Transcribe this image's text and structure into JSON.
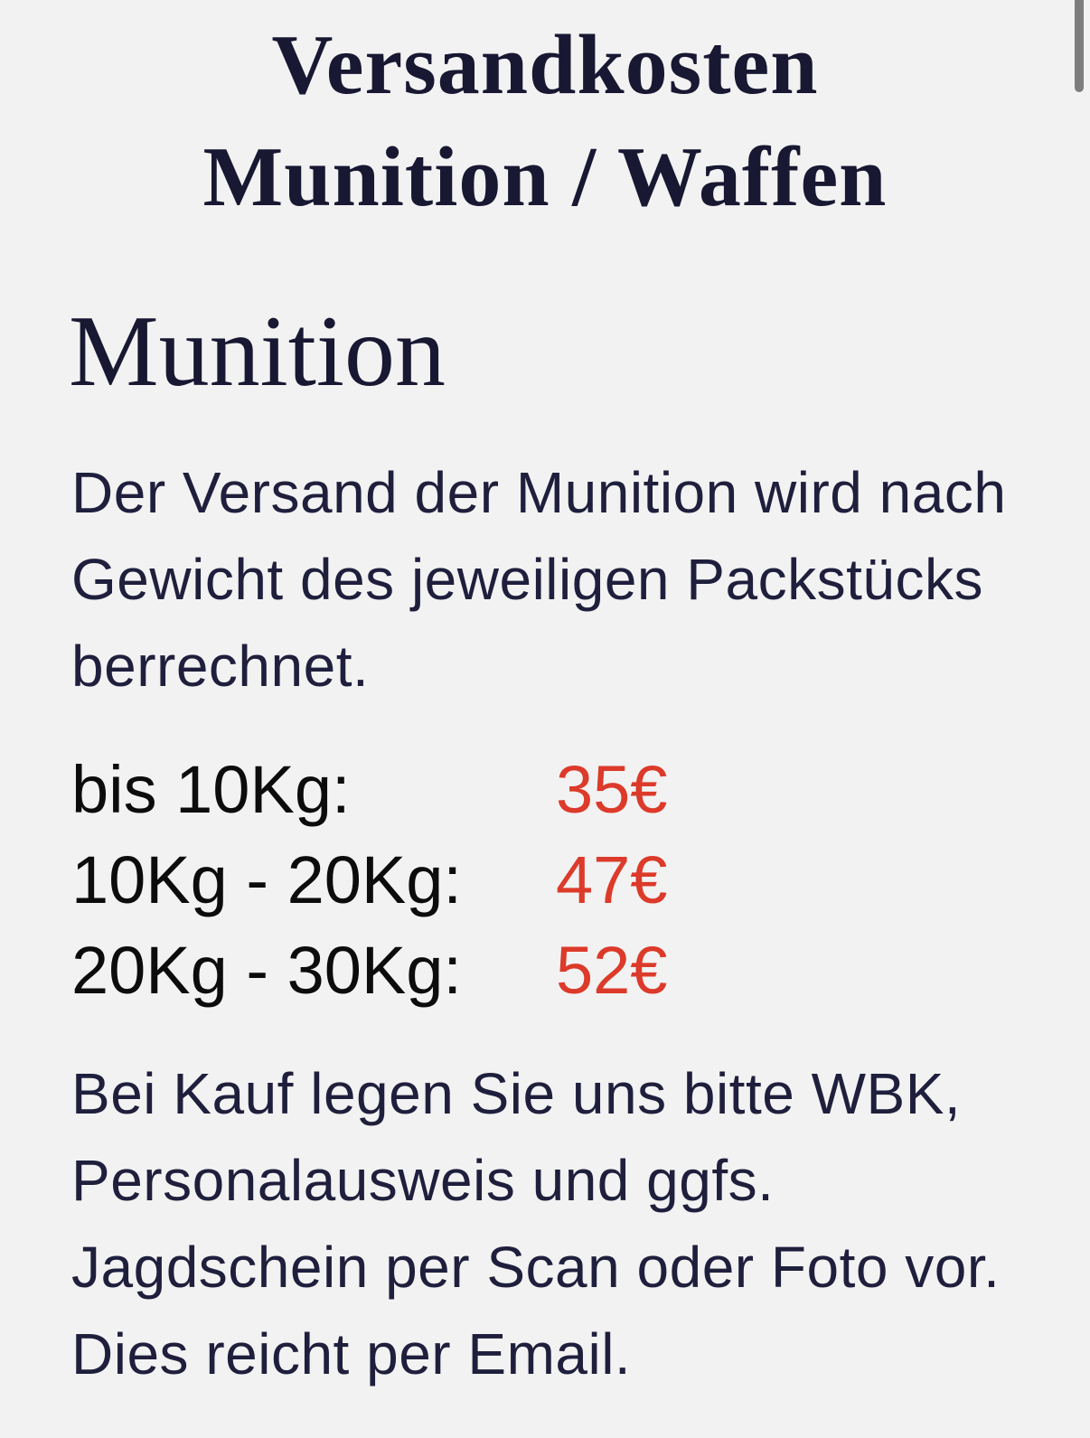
{
  "title": {
    "lines": [
      "Versandkosten",
      "Munition / Waffen"
    ]
  },
  "section": {
    "heading": "Munition"
  },
  "intro": {
    "lines": [
      "Der Versand der Munition wird nach",
      "Gewicht des jeweiligen Packstücks",
      "berrechnet."
    ]
  },
  "prices": {
    "rows": [
      {
        "label": "bis 10Kg:",
        "price": "35€"
      },
      {
        "label": "10Kg - 20Kg:",
        "price": "47€"
      },
      {
        "label": "20Kg - 30Kg:",
        "price": "52€"
      }
    ]
  },
  "note": {
    "lines": [
      "Bei Kauf legen Sie uns bitte WBK,",
      "Personalausweis und ggfs.",
      "Jagdschein per Scan oder Foto vor.",
      "Dies reicht per Email."
    ]
  },
  "colors": {
    "background": "#f2f2f2",
    "heading_text": "#181833",
    "body_text": "#1f1f3d",
    "price_label_text": "#0c0c0c",
    "price_value_text": "#dc3a2a",
    "scrollbar_thumb": "#7d7d7d"
  }
}
